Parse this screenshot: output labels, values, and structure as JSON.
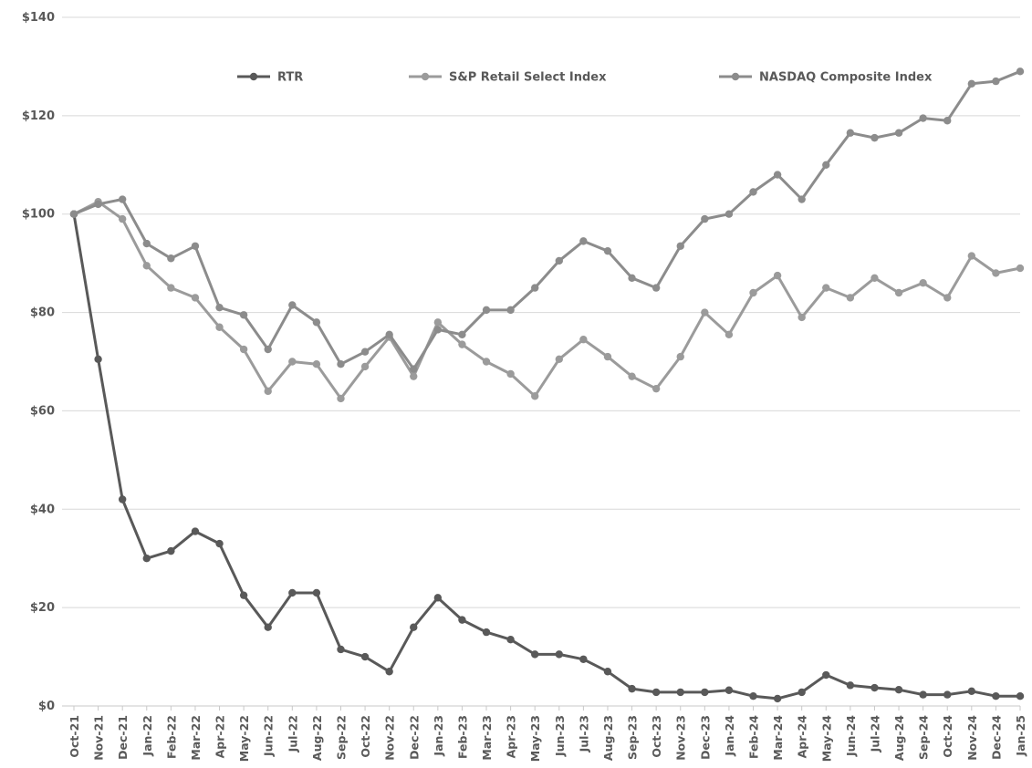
{
  "chart_data": {
    "type": "line",
    "title": "",
    "xlabel": "",
    "ylabel": "",
    "ylim": [
      0,
      140
    ],
    "yticks": [
      0,
      20,
      40,
      60,
      80,
      100,
      120,
      140
    ],
    "ytick_labels": [
      "$0",
      "$20",
      "$40",
      "$60",
      "$80",
      "$100",
      "$120",
      "$140"
    ],
    "grid": true,
    "legend_position": "top",
    "categories": [
      "Oct-21",
      "Nov-21",
      "Dec-21",
      "Jan-22",
      "Feb-22",
      "Mar-22",
      "Apr-22",
      "May-22",
      "Jun-22",
      "Jul-22",
      "Aug-22",
      "Sep-22",
      "Oct-22",
      "Nov-22",
      "Dec-22",
      "Jan-23",
      "Feb-23",
      "Mar-23",
      "Apr-23",
      "May-23",
      "Jun-23",
      "Jul-23",
      "Aug-23",
      "Sep-23",
      "Oct-23",
      "Nov-23",
      "Dec-23",
      "Jan-24",
      "Feb-24",
      "Mar-24",
      "Apr-24",
      "May-24",
      "Jun-24",
      "Jul-24",
      "Aug-24",
      "Sep-24",
      "Oct-24",
      "Nov-24",
      "Dec-24",
      "Jan-25"
    ],
    "series": [
      {
        "name": "RTR",
        "color": "#595959",
        "values": [
          100,
          70.5,
          42,
          30,
          31.5,
          35.5,
          33,
          22.5,
          16,
          23,
          23,
          11.5,
          10,
          7,
          16,
          22,
          17.5,
          15,
          13.5,
          10.5,
          10.5,
          9.5,
          7,
          3.5,
          2.8,
          2.8,
          2.8,
          3.2,
          2,
          1.5,
          2.8,
          6.3,
          4.2,
          3.7,
          3.3,
          2.3,
          2.3,
          3,
          2,
          2
        ]
      },
      {
        "name": "S&P Retail Select Index",
        "color": "#9b9b9b",
        "values": [
          100,
          102.5,
          99,
          89.5,
          85,
          83,
          77,
          72.5,
          64,
          70,
          69.5,
          62.5,
          69,
          75,
          67,
          78,
          73.5,
          70,
          67.5,
          63,
          70.5,
          74.5,
          71,
          67,
          64.5,
          71,
          80,
          75.5,
          84,
          87.5,
          79,
          85,
          83,
          87,
          84,
          86,
          83,
          91.5,
          88,
          89
        ]
      },
      {
        "name": "NASDAQ Composite Index",
        "color": "#8c8c8c",
        "values": [
          100,
          102,
          103,
          94,
          91,
          93.5,
          81,
          79.5,
          72.5,
          81.5,
          78,
          69.5,
          72,
          75.5,
          68.5,
          76.5,
          75.5,
          80.5,
          80.5,
          85,
          90.5,
          94.5,
          92.5,
          87,
          85,
          93.5,
          99,
          100,
          104.5,
          108,
          103,
          110,
          116.5,
          115.5,
          116.5,
          119.5,
          119,
          126.5,
          127,
          129
        ]
      }
    ]
  }
}
